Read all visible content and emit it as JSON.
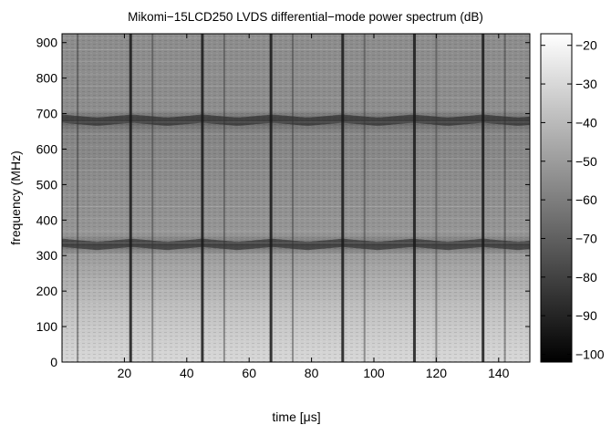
{
  "chart_data": {
    "type": "heatmap",
    "title": "Mikomi−15LCD250 LVDS differential−mode power spectrum (dB)",
    "xlabel": "time [μs]",
    "ylabel": "frequency (MHz)",
    "xlim": [
      0,
      150
    ],
    "ylim": [
      0,
      925
    ],
    "xticks": [
      20,
      40,
      60,
      80,
      100,
      120,
      140
    ],
    "yticks": [
      0,
      100,
      200,
      300,
      400,
      500,
      600,
      700,
      800,
      900
    ],
    "colormap": "gray",
    "colorbar": {
      "range": [
        -102,
        -17
      ],
      "ticks": [
        -20,
        -30,
        -40,
        -50,
        -60,
        -70,
        -80,
        -90,
        -100
      ]
    },
    "vertical_dark_lines_x": [
      5,
      22,
      29,
      45,
      52,
      67,
      74,
      90,
      97,
      113,
      120,
      135,
      142
    ],
    "bands": [
      {
        "freq_center": 330,
        "description": "dark band, wavy"
      },
      {
        "freq_center": 680,
        "description": "dark band, wavy"
      }
    ],
    "levels_by_freq": [
      {
        "freq": 0,
        "db": -30
      },
      {
        "freq": 150,
        "db": -38
      },
      {
        "freq": 300,
        "db": -50
      },
      {
        "freq": 330,
        "db": -65
      },
      {
        "freq": 360,
        "db": -52
      },
      {
        "freq": 500,
        "db": -55
      },
      {
        "freq": 650,
        "db": -58
      },
      {
        "freq": 680,
        "db": -68
      },
      {
        "freq": 710,
        "db": -55
      },
      {
        "freq": 925,
        "db": -55
      }
    ],
    "grid": false
  }
}
